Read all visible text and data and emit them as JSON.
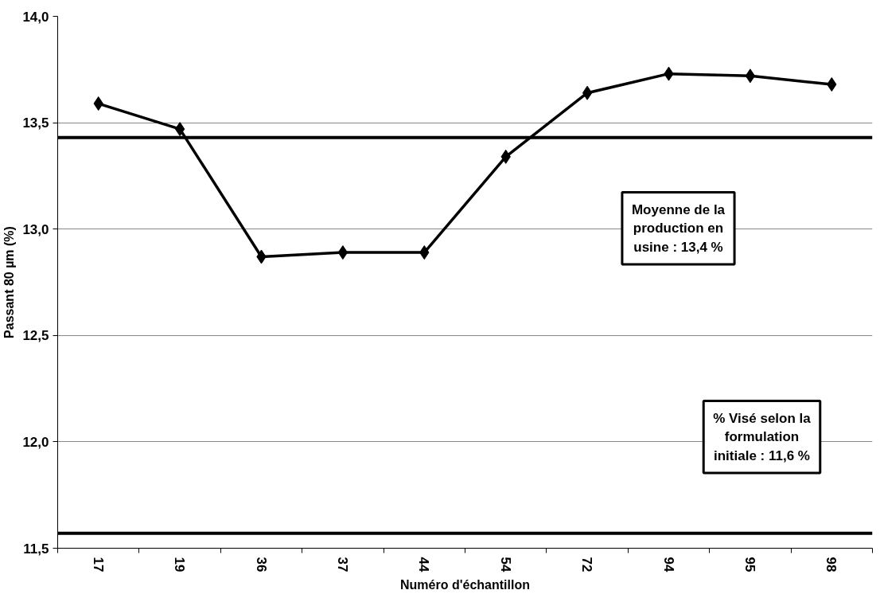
{
  "chart_data": {
    "type": "line",
    "xlabel": "Numéro d'échantillon",
    "ylabel": "Passant 80 µm (%)",
    "categories": [
      "17",
      "19",
      "36",
      "37",
      "44",
      "54",
      "72",
      "94",
      "95",
      "98"
    ],
    "series": [
      {
        "color": "#000000",
        "values": [
          13.59,
          13.47,
          12.87,
          12.89,
          12.89,
          13.34,
          13.64,
          13.73,
          13.72,
          13.68
        ]
      }
    ],
    "ylim": [
      11.5,
      14.0
    ],
    "yticks": [
      {
        "value": 11.5,
        "label": "11,5"
      },
      {
        "value": 12.0,
        "label": "12,0"
      },
      {
        "value": 12.5,
        "label": "12,5"
      },
      {
        "value": 13.0,
        "label": "13,0"
      },
      {
        "value": 13.5,
        "label": "13,5"
      },
      {
        "value": 14.0,
        "label": "14,0"
      }
    ],
    "grid": "y",
    "marker": "diamond",
    "line_style": "solid",
    "ref_lines": [
      {
        "axis": "y",
        "value": 13.43,
        "color": "#000000"
      },
      {
        "axis": "y",
        "value": 11.57,
        "color": "#000000"
      }
    ],
    "annotations": [
      "Moyenne de la production en usine : 13,4 %",
      "% Visé selon la formulation initiale : 11,6 %"
    ]
  }
}
